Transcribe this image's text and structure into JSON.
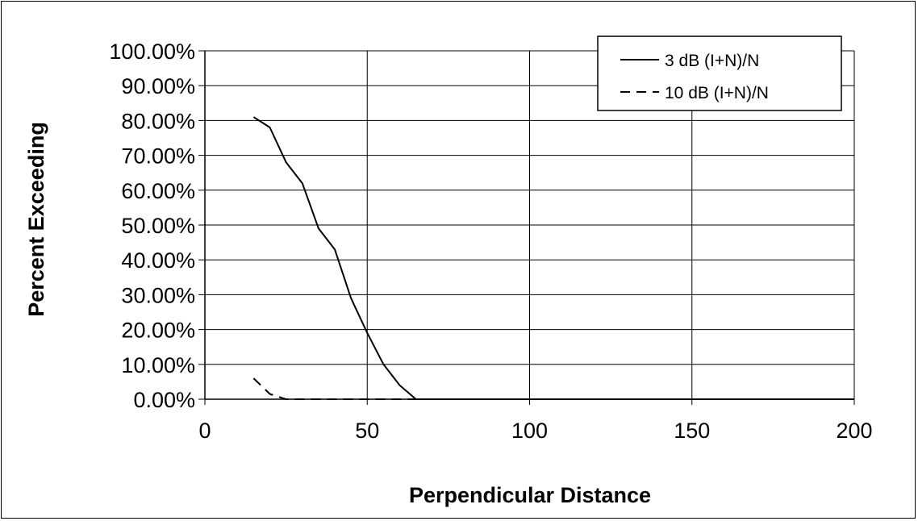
{
  "chart_data": {
    "type": "line",
    "title": "",
    "xlabel": "Perpendicular Distance",
    "ylabel": "Percent Exceeding",
    "xlim": [
      0,
      200
    ],
    "ylim": [
      0,
      1
    ],
    "xticks": [
      "0",
      "50",
      "100",
      "150",
      "200"
    ],
    "yticks": [
      "0.00%",
      "10.00%",
      "20.00%",
      "30.00%",
      "40.00%",
      "50.00%",
      "60.00%",
      "70.00%",
      "80.00%",
      "90.00%",
      "100.00%"
    ],
    "grid": true,
    "legend_position": "top-right",
    "series": [
      {
        "name": "3 dB (I+N)/N",
        "line_style": "solid",
        "color": "#000000",
        "x": [
          15,
          20,
          25,
          30,
          35,
          40,
          45,
          50,
          55,
          60,
          65,
          70,
          80,
          90,
          100,
          110,
          120,
          130,
          140,
          150,
          160,
          170,
          180,
          190,
          200
        ],
        "y": [
          0.81,
          0.78,
          0.68,
          0.62,
          0.49,
          0.43,
          0.29,
          0.19,
          0.1,
          0.04,
          0.0,
          0.0,
          0.0,
          0.0,
          0.0,
          0.0,
          0.0,
          0.0,
          0.0,
          0.0,
          0.0,
          0.0,
          0.0,
          0.0,
          0.0
        ]
      },
      {
        "name": "10 dB (I+N)/N",
        "line_style": "dashed",
        "color": "#000000",
        "x": [
          15,
          20,
          25,
          30,
          40,
          50,
          60,
          70,
          80,
          90,
          100,
          110,
          120,
          130,
          140,
          150,
          160,
          170,
          180,
          190,
          200
        ],
        "y": [
          0.06,
          0.015,
          0.0,
          0.0,
          0.0,
          0.0,
          0.0,
          0.0,
          0.0,
          0.0,
          0.0,
          0.0,
          0.0,
          0.0,
          0.0,
          0.0,
          0.0,
          0.0,
          0.0,
          0.0,
          0.0
        ]
      }
    ]
  }
}
